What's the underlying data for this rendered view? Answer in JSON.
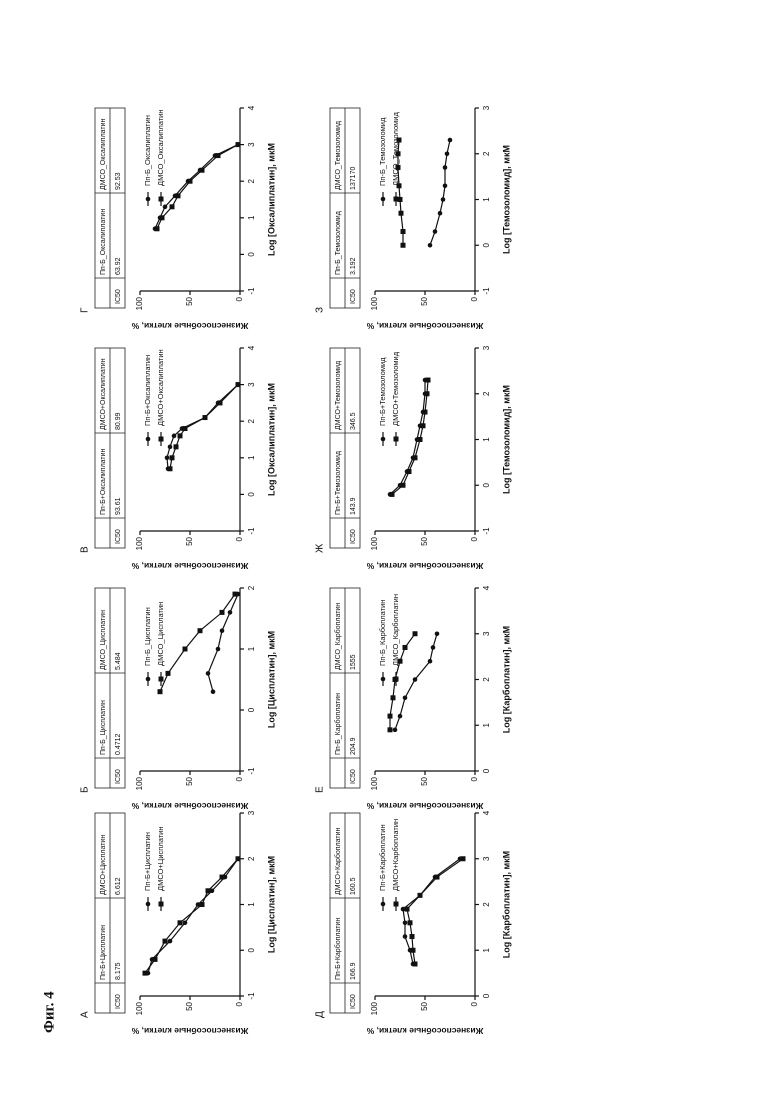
{
  "figure_label": "Фиг. 4",
  "chart_data": [
    {
      "type": "line",
      "label": "А",
      "x_label": "Log [Цисплатин], мкМ",
      "y_label": "Жизнеспособные клетки, %",
      "xlim": [
        -1,
        3
      ],
      "xticks": [
        -1,
        0,
        1,
        2,
        3
      ],
      "ylim": [
        0,
        100
      ],
      "yticks": [
        0,
        50,
        100
      ],
      "ic50": {
        "label": "IC50",
        "values": [
          8.175,
          6.612
        ]
      },
      "x": [
        -0.5,
        -0.2,
        0.2,
        0.6,
        1,
        1.3,
        1.6,
        2
      ],
      "series": [
        {
          "name": "Пп-Б+Цисплатин",
          "color": "#111111",
          "marker": "circle",
          "values": [
            92,
            88,
            70,
            55,
            42,
            28,
            15,
            2
          ]
        },
        {
          "name": "ДМСО+Цисплатин",
          "color": "#111111",
          "marker": "square",
          "values": [
            95,
            85,
            75,
            60,
            38,
            32,
            18,
            2
          ]
        }
      ]
    },
    {
      "type": "line",
      "label": "Б",
      "x_label": "Log [Цисплатин], мкМ",
      "y_label": "Жизнеспособные клетки, %",
      "xlim": [
        -1,
        2
      ],
      "xticks": [
        -1,
        0,
        1,
        2
      ],
      "ylim": [
        0,
        100
      ],
      "yticks": [
        0,
        50,
        100
      ],
      "ic50": {
        "label": "IC50",
        "values": [
          0.4712,
          5.484
        ]
      },
      "x": [
        0.3,
        0.6,
        1,
        1.3,
        1.6,
        1.9
      ],
      "series": [
        {
          "name": "Пп-Б_Цисплатин",
          "color": "#111111",
          "marker": "circle",
          "values": [
            27,
            32,
            22,
            18,
            10,
            2
          ]
        },
        {
          "name": "ДМСО_Цисплатин",
          "color": "#111111",
          "marker": "square",
          "values": [
            80,
            72,
            55,
            40,
            18,
            5
          ]
        }
      ]
    },
    {
      "type": "line",
      "label": "В",
      "x_label": "Log [Оксалиплатин], мкМ",
      "y_label": "Жизнеспособные клетки, %",
      "xlim": [
        -1,
        4
      ],
      "xticks": [
        -1,
        0,
        1,
        2,
        3,
        4
      ],
      "ylim": [
        0,
        100
      ],
      "yticks": [
        0,
        50,
        100
      ],
      "ic50": {
        "label": "IC50",
        "values": [
          93.61,
          80.99
        ]
      },
      "x": [
        0.7,
        1,
        1.3,
        1.6,
        1.8,
        2.1,
        2.5,
        3
      ],
      "series": [
        {
          "name": "Пп-Б+Оксалиплатин",
          "color": "#111111",
          "marker": "circle",
          "values": [
            72,
            73,
            70,
            66,
            58,
            35,
            22,
            2
          ]
        },
        {
          "name": "ДМСО+Оксалиплатин",
          "color": "#111111",
          "marker": "square",
          "values": [
            70,
            68,
            64,
            60,
            55,
            35,
            20,
            2
          ]
        }
      ]
    },
    {
      "type": "line",
      "label": "Г",
      "x_label": "Log [Оксалиплатин], мкМ",
      "y_label": "Жизнеспособные клетки, %",
      "xlim": [
        -1,
        4
      ],
      "xticks": [
        -1,
        0,
        1,
        2,
        3,
        4
      ],
      "ylim": [
        0,
        100
      ],
      "yticks": [
        0,
        50,
        100
      ],
      "ic50": {
        "label": "IC50",
        "values": [
          63.92,
          92.53
        ]
      },
      "x": [
        0.7,
        1,
        1.3,
        1.6,
        2,
        2.3,
        2.7,
        3
      ],
      "series": [
        {
          "name": "Пп-Б_Оксалиплатин",
          "color": "#111111",
          "marker": "circle",
          "values": [
            85,
            80,
            75,
            65,
            52,
            40,
            25,
            2
          ]
        },
        {
          "name": "ДМСО_Оксалиплатин",
          "color": "#111111",
          "marker": "square",
          "values": [
            83,
            78,
            68,
            62,
            50,
            38,
            22,
            2
          ]
        }
      ]
    },
    {
      "type": "line",
      "label": "Д",
      "x_label": "Log [Карбоплатин], мкМ",
      "y_label": "Жизнеспособные клетки, %",
      "xlim": [
        0,
        4
      ],
      "xticks": [
        0,
        1,
        2,
        3,
        4
      ],
      "ylim": [
        0,
        100
      ],
      "yticks": [
        0,
        50,
        100
      ],
      "ic50": {
        "label": "IC50",
        "values": [
          166.9,
          160.5
        ]
      },
      "x": [
        0.7,
        1,
        1.3,
        1.6,
        1.9,
        2.2,
        2.6,
        3
      ],
      "series": [
        {
          "name": "Пп-Б+Карбоплатин",
          "color": "#111111",
          "marker": "circle",
          "values": [
            62,
            65,
            70,
            70,
            72,
            55,
            40,
            15
          ]
        },
        {
          "name": "ДМСО+Карбоплатин",
          "color": "#111111",
          "marker": "square",
          "values": [
            60,
            62,
            63,
            65,
            68,
            55,
            38,
            12
          ]
        }
      ]
    },
    {
      "type": "line",
      "label": "Е",
      "x_label": "Log [Карбоплатин], мкМ",
      "y_label": "Жизнеспособные клетки, %",
      "xlim": [
        0,
        4
      ],
      "xticks": [
        0,
        1,
        2,
        3,
        4
      ],
      "ylim": [
        0,
        100
      ],
      "yticks": [
        0,
        50,
        100
      ],
      "ic50": {
        "label": "IC50",
        "values": [
          204.9,
          1555
        ]
      },
      "x": [
        0.9,
        1.2,
        1.6,
        2,
        2.4,
        2.7,
        3
      ],
      "series": [
        {
          "name": "Пп-Б_Карбоплатин",
          "color": "#111111",
          "marker": "circle",
          "values": [
            80,
            75,
            70,
            60,
            45,
            42,
            38
          ]
        },
        {
          "name": "ДМСО_Карбоплатин",
          "color": "#111111",
          "marker": "square",
          "values": [
            85,
            85,
            82,
            80,
            75,
            70,
            60
          ]
        }
      ]
    },
    {
      "type": "line",
      "label": "Ж",
      "x_label": "Log [Темозоломид], мкМ",
      "y_label": "Жизнеспособные клетки, %",
      "xlim": [
        -1,
        3
      ],
      "xticks": [
        -1,
        0,
        1,
        2,
        3
      ],
      "ylim": [
        0,
        100
      ],
      "yticks": [
        0,
        50,
        100
      ],
      "ic50": {
        "label": "IC50",
        "values": [
          143.9,
          346.5
        ]
      },
      "x": [
        -0.2,
        0,
        0.3,
        0.6,
        1,
        1.3,
        1.6,
        2,
        2.3
      ],
      "series": [
        {
          "name": "Пп-Б+Темозоломид",
          "color": "#111111",
          "marker": "circle",
          "values": [
            85,
            75,
            68,
            62,
            58,
            55,
            52,
            50,
            50
          ]
        },
        {
          "name": "ДМСО+Темозоломид",
          "color": "#111111",
          "marker": "square",
          "values": [
            83,
            72,
            66,
            60,
            55,
            52,
            50,
            48,
            47
          ]
        }
      ]
    },
    {
      "type": "line",
      "label": "З",
      "x_label": "Log [Темозоломид], мкМ",
      "y_label": "Жизнеспособные клетки, %",
      "xlim": [
        -1,
        3
      ],
      "xticks": [
        -1,
        0,
        1,
        2,
        3
      ],
      "ylim": [
        0,
        100
      ],
      "yticks": [
        0,
        50,
        100
      ],
      "ic50": {
        "label": "IC50",
        "values": [
          3.192,
          137170
        ]
      },
      "x": [
        0,
        0.3,
        0.7,
        1,
        1.3,
        1.7,
        2,
        2.3
      ],
      "series": [
        {
          "name": "Пп-Б_Темозоломид",
          "color": "#111111",
          "marker": "circle",
          "values": [
            45,
            40,
            35,
            32,
            30,
            30,
            28,
            25
          ]
        },
        {
          "name": "ДМСО_Темозоломид",
          "color": "#111111",
          "marker": "square",
          "values": [
            72,
            72,
            74,
            75,
            76,
            77,
            77,
            76
          ]
        }
      ]
    }
  ]
}
